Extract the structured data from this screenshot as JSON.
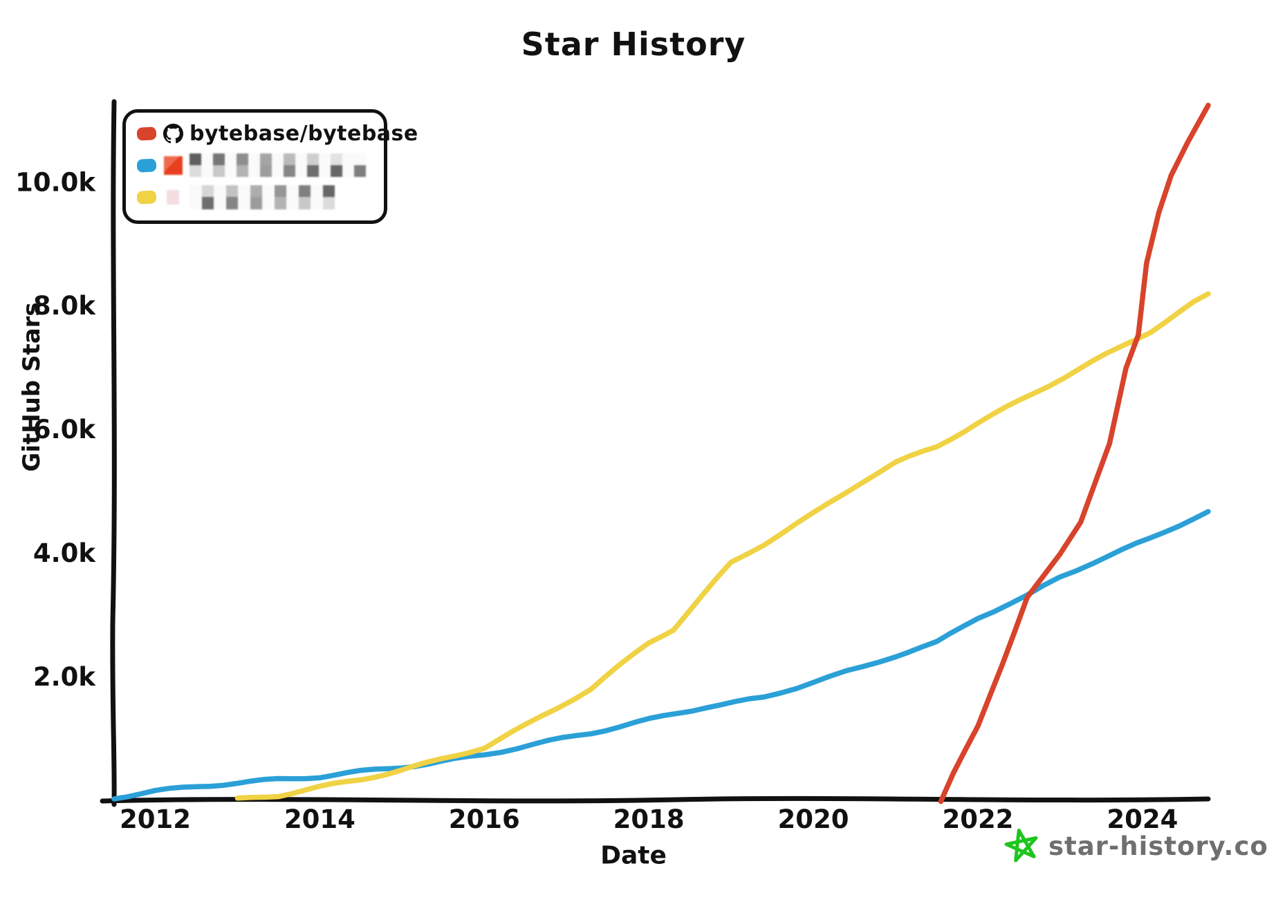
{
  "title": "Star History",
  "footer": {
    "site": "star-history.com",
    "text_color": "#6f6f6f",
    "star_color": "#1ec51e",
    "star_icon": "green-star-icon"
  },
  "legend": {
    "entries": [
      {
        "label": "bytebase/bytebase",
        "color": "#d8432b",
        "avatar": "github-octocat-icon",
        "blurred": false
      },
      {
        "label": "",
        "color": "#2ba0d7",
        "avatar": "blurred-red-avatar",
        "blurred": true
      },
      {
        "label": "",
        "color": "#f0d245",
        "avatar": "blurred-pink-avatar",
        "blurred": true
      }
    ]
  },
  "chart_data": {
    "type": "line",
    "title": "Star History",
    "xlabel": "Date",
    "ylabel": "GitHub Stars",
    "grid": false,
    "legend_position": "top-left",
    "xlim": [
      2011.5,
      2024.8
    ],
    "ylim": [
      0,
      11300
    ],
    "axis_color": "#111111",
    "x_ticks": [
      {
        "value": 2012,
        "label": "2012"
      },
      {
        "value": 2014,
        "label": "2014"
      },
      {
        "value": 2016,
        "label": "2016"
      },
      {
        "value": 2018,
        "label": "2018"
      },
      {
        "value": 2020,
        "label": "2020"
      },
      {
        "value": 2022,
        "label": "2022"
      },
      {
        "value": 2024,
        "label": "2024"
      }
    ],
    "y_ticks": [
      {
        "value": 2000,
        "label": "2.0k"
      },
      {
        "value": 4000,
        "label": "4.0k"
      },
      {
        "value": 6000,
        "label": "6.0k"
      },
      {
        "value": 8000,
        "label": "8.0k"
      },
      {
        "value": 10000,
        "label": "10.0k"
      }
    ],
    "series": [
      {
        "name": "bytebase/bytebase",
        "color": "#d8432b",
        "draw_index": 3,
        "points": [
          [
            2021.55,
            0
          ],
          [
            2021.7,
            440
          ],
          [
            2022.0,
            1190
          ],
          [
            2022.3,
            2220
          ],
          [
            2022.6,
            3310
          ],
          [
            2023.0,
            3970
          ],
          [
            2023.25,
            4480
          ],
          [
            2023.6,
            5780
          ],
          [
            2023.8,
            7000
          ],
          [
            2023.95,
            7520
          ],
          [
            2024.05,
            8670
          ],
          [
            2024.2,
            9480
          ],
          [
            2024.35,
            10080
          ],
          [
            2024.55,
            10630
          ],
          [
            2024.8,
            11240
          ]
        ]
      },
      {
        "name": "(blurred repo, blue)",
        "color": "#2ba0d7",
        "draw_index": 1,
        "points": [
          [
            2011.5,
            50
          ],
          [
            2012.0,
            150
          ],
          [
            2012.5,
            220
          ],
          [
            2013.0,
            270
          ],
          [
            2013.5,
            330
          ],
          [
            2014.0,
            380
          ],
          [
            2014.5,
            470
          ],
          [
            2015.0,
            550
          ],
          [
            2015.3,
            600
          ],
          [
            2016.0,
            740
          ],
          [
            2016.6,
            900
          ],
          [
            2017.3,
            1080
          ],
          [
            2018.0,
            1300
          ],
          [
            2018.7,
            1520
          ],
          [
            2019.4,
            1670
          ],
          [
            2020.0,
            1920
          ],
          [
            2020.6,
            2150
          ],
          [
            2021.0,
            2330
          ],
          [
            2021.5,
            2540
          ],
          [
            2022.0,
            2950
          ],
          [
            2022.6,
            3310
          ],
          [
            2023.0,
            3620
          ],
          [
            2023.4,
            3860
          ],
          [
            2024.1,
            4240
          ],
          [
            2024.8,
            4670
          ]
        ]
      },
      {
        "name": "(blurred repo, yellow)",
        "color": "#f0d245",
        "draw_index": 2,
        "points": [
          [
            2013.0,
            10
          ],
          [
            2013.5,
            80
          ],
          [
            2014.0,
            220
          ],
          [
            2014.5,
            350
          ],
          [
            2015.0,
            500
          ],
          [
            2015.3,
            600
          ],
          [
            2016.0,
            850
          ],
          [
            2016.5,
            1200
          ],
          [
            2017.3,
            1800
          ],
          [
            2018.0,
            2560
          ],
          [
            2018.3,
            2780
          ],
          [
            2019.0,
            3850
          ],
          [
            2019.4,
            4150
          ],
          [
            2020.0,
            4630
          ],
          [
            2020.6,
            5150
          ],
          [
            2021.0,
            5450
          ],
          [
            2021.5,
            5720
          ],
          [
            2022.0,
            6110
          ],
          [
            2022.7,
            6610
          ],
          [
            2023.4,
            7100
          ],
          [
            2024.1,
            7580
          ],
          [
            2024.8,
            8190
          ]
        ]
      }
    ]
  }
}
